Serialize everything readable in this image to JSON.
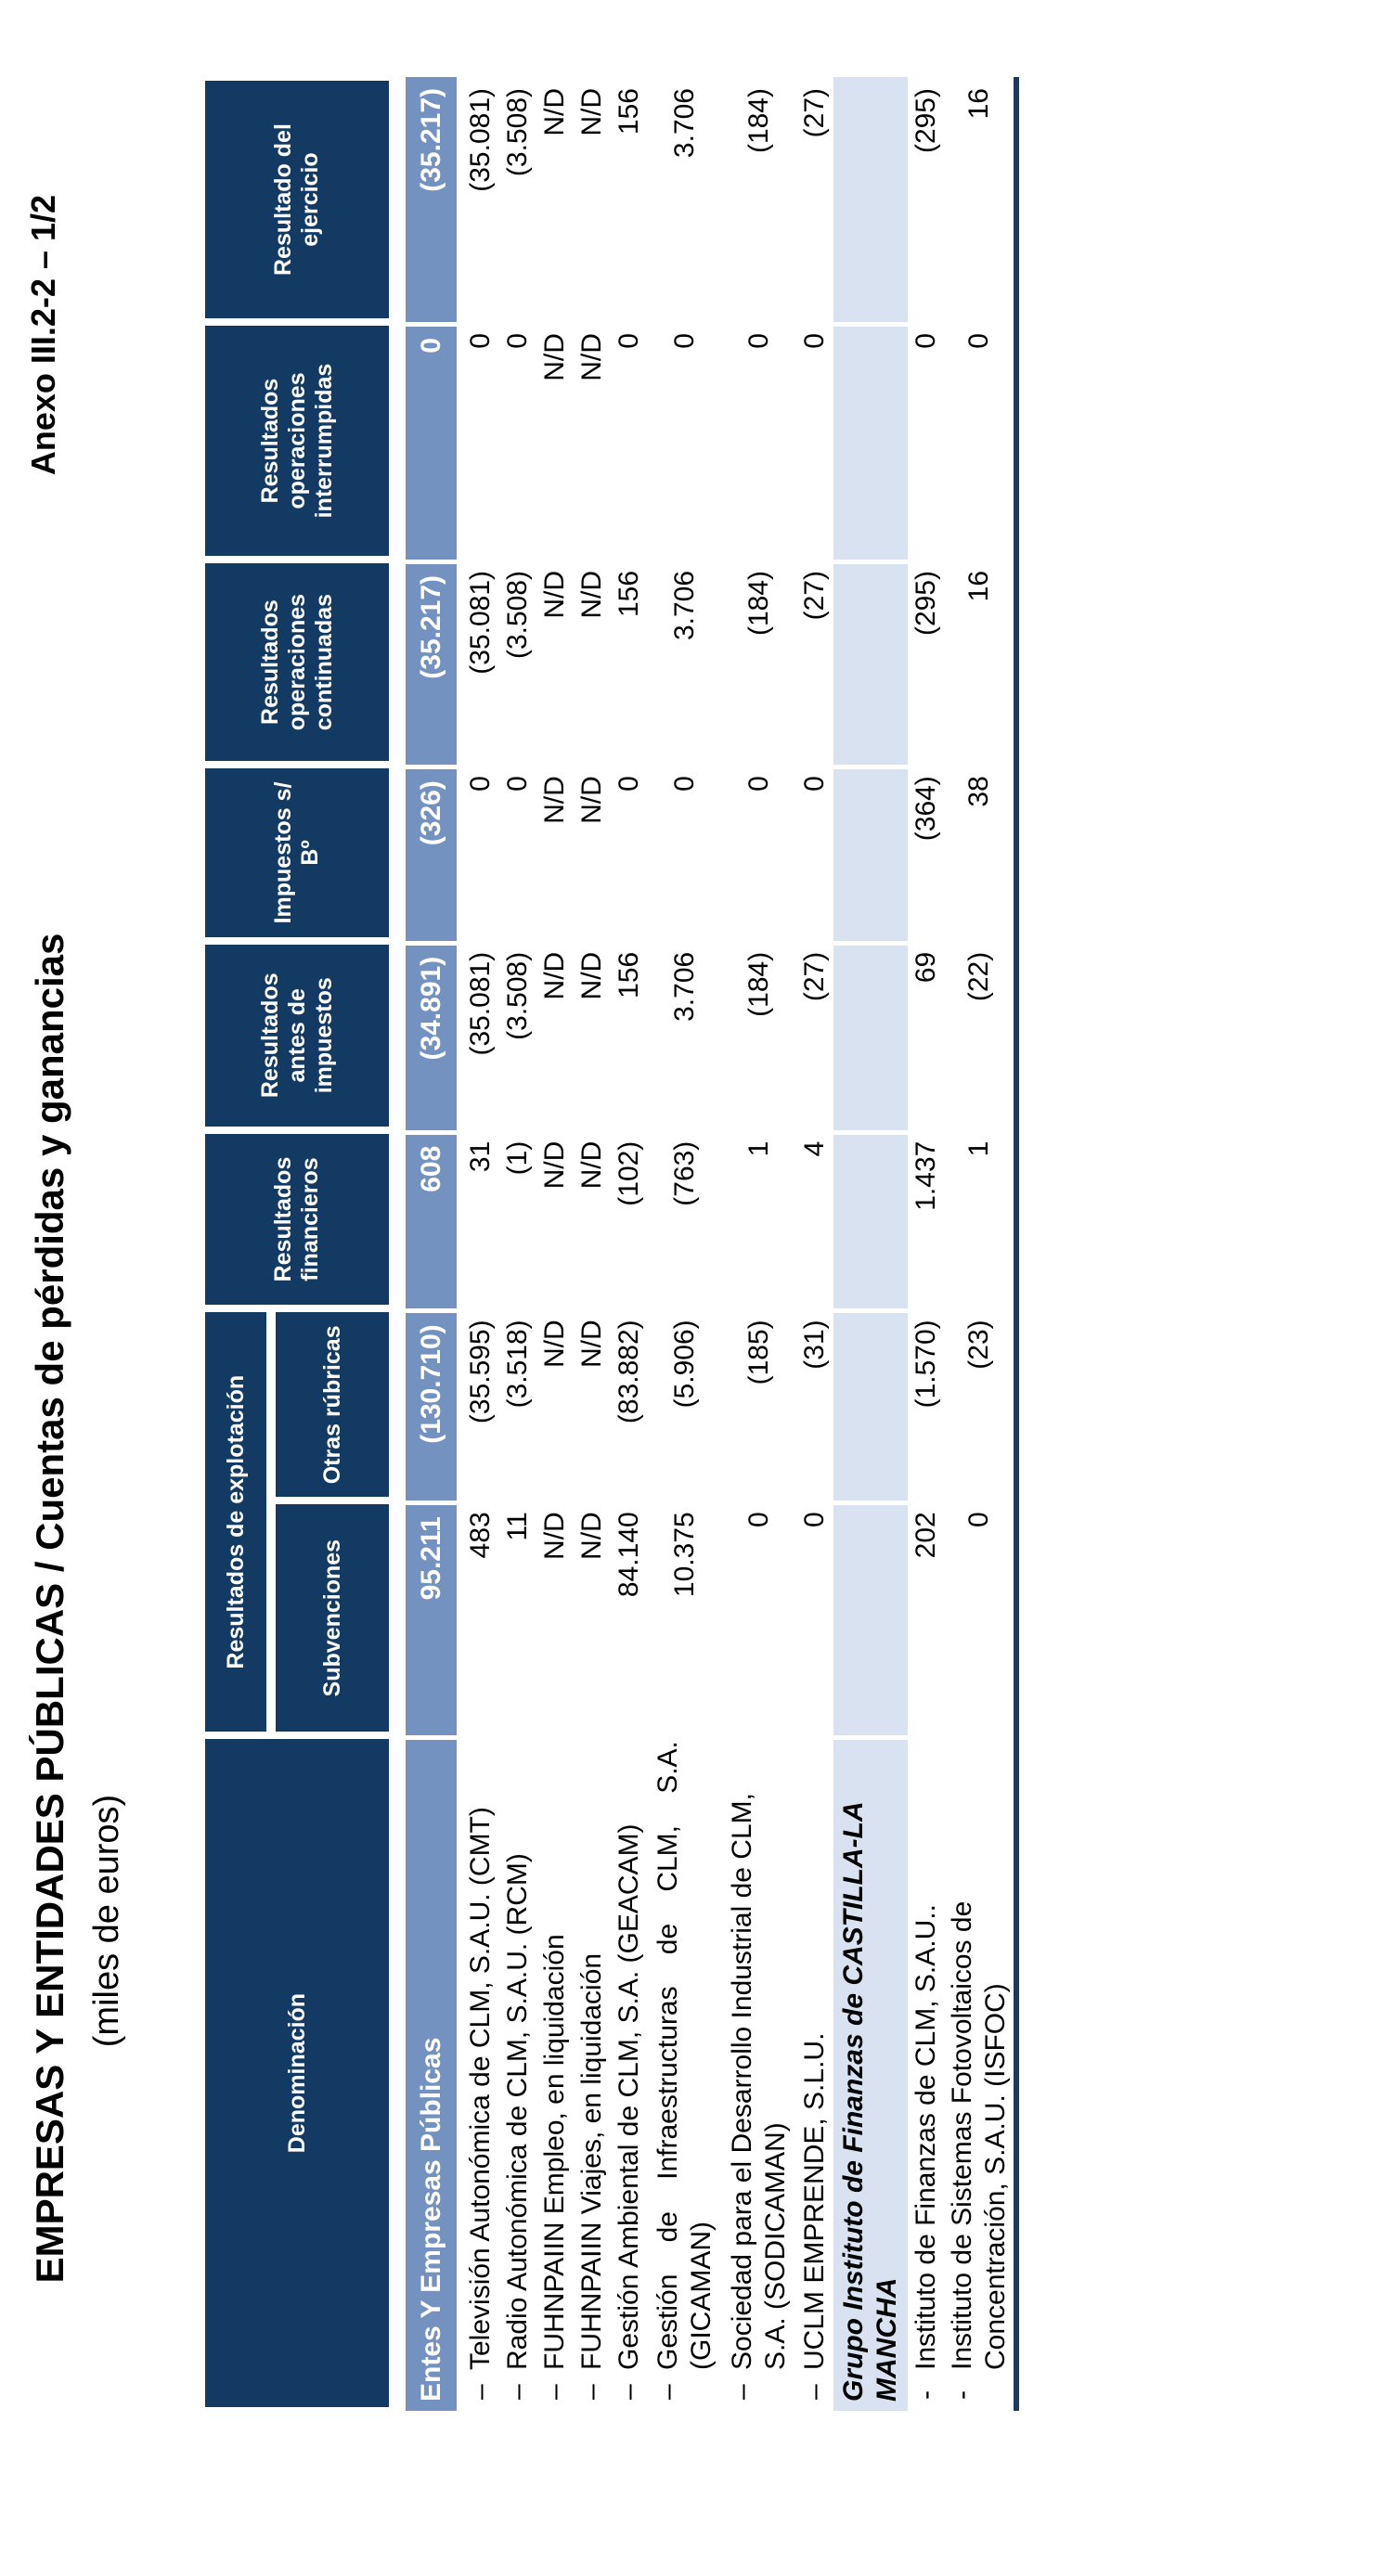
{
  "page": {
    "annex_label": "Anexo III.2-2 – 1/2",
    "title": "EMPRESAS Y ENTIDADES PÚBLICAS  /  Cuentas de pérdidas y ganancias",
    "subtitle": "(miles de euros)"
  },
  "colors": {
    "header_navy": "#123a63",
    "total_row_blue": "#7392bf",
    "subheader_row_blue": "#d9e2f1",
    "bottom_rule_navy": "#1c3a5e"
  },
  "table": {
    "columns": {
      "denominacion": "Denominación",
      "explotacion_group": "Resultados de explotación",
      "subvenciones": "Subvenciones",
      "otras_rubricas": "Otras rúbricas",
      "financieros": "Resultados financieros",
      "antes_impuestos": "Resultados antes de impuestos",
      "impuestos": "Impuestos s/ Bº",
      "continuadas": "Resultados operaciones continuadas",
      "interrumpidas": "Resultados operaciones interrumpidas",
      "ejercicio": "Resultado del ejercicio"
    },
    "value_column_order": [
      "subvenciones",
      "otras_rubricas",
      "financieros",
      "antes_impuestos",
      "impuestos",
      "continuadas",
      "interrumpidas",
      "ejercicio"
    ],
    "rows": [
      {
        "type": "total",
        "dash": "",
        "name_lines": [
          "Entes Y Empresas Públicas"
        ],
        "values": [
          "95.211",
          "(130.710)",
          "608",
          "(34.891)",
          "(326)",
          "(35.217)",
          "0",
          "(35.217)"
        ]
      },
      {
        "type": "item",
        "dash": "–",
        "name_lines": [
          "Televisión Autonómica de CLM, S.A.U. (CMT)"
        ],
        "values": [
          "483",
          "(35.595)",
          "31",
          "(35.081)",
          "0",
          "(35.081)",
          "0",
          "(35.081)"
        ]
      },
      {
        "type": "item",
        "dash": "–",
        "name_lines": [
          "Radio Autonómica de CLM, S.A.U. (RCM)"
        ],
        "values": [
          "11",
          "(3.518)",
          "(1)",
          "(3.508)",
          "0",
          "(3.508)",
          "0",
          "(3.508)"
        ]
      },
      {
        "type": "item",
        "dash": "–",
        "name_lines": [
          "FUHNPAIIN Empleo, en liquidación"
        ],
        "values": [
          "N/D",
          "N/D",
          "N/D",
          "N/D",
          "N/D",
          "N/D",
          "N/D",
          "N/D"
        ]
      },
      {
        "type": "item",
        "dash": "–",
        "name_lines": [
          "FUHNPAIIN Viajes, en liquidación"
        ],
        "values": [
          "N/D",
          "N/D",
          "N/D",
          "N/D",
          "N/D",
          "N/D",
          "N/D",
          "N/D"
        ]
      },
      {
        "type": "item",
        "dash": "–",
        "name_lines": [
          "Gestión Ambiental de CLM, S.A. (GEACAM)"
        ],
        "values": [
          "84.140",
          "(83.882)",
          "(102)",
          "156",
          "0",
          "156",
          "0",
          "156"
        ]
      },
      {
        "type": "item",
        "dash": "–",
        "justify_first_line": true,
        "name_lines": [
          "Gestión de Infraestructuras de CLM, S.A.",
          "(GICAMAN)"
        ],
        "values": [
          "10.375",
          "(5.906)",
          "(763)",
          "3.706",
          "0",
          "3.706",
          "0",
          "3.706"
        ]
      },
      {
        "type": "item",
        "dash": "–",
        "name_lines": [
          "Sociedad para el Desarrollo Industrial de CLM,",
          "S.A. (SODICAMAN)"
        ],
        "values": [
          "0",
          "(185)",
          "1",
          "(184)",
          "0",
          "(184)",
          "0",
          "(184)"
        ]
      },
      {
        "type": "item",
        "dash": "–",
        "name_lines": [
          "UCLM EMPRENDE, S.L.U."
        ],
        "values": [
          "0",
          "(31)",
          "4",
          "(27)",
          "0",
          "(27)",
          "0",
          "(27)"
        ]
      },
      {
        "type": "subheader",
        "dash": "",
        "name_lines": [
          "Grupo Instituto de Finanzas de CASTILLA-LA",
          "MANCHA"
        ],
        "values": [
          "",
          "",
          "",
          "",
          "",
          "",
          "",
          ""
        ]
      },
      {
        "type": "item",
        "dash": "-",
        "name_lines": [
          "Instituto de Finanzas de CLM, S.A.U.."
        ],
        "values": [
          "202",
          "(1.570)",
          "1.437",
          "69",
          "(364)",
          "(295)",
          "0",
          "(295)"
        ]
      },
      {
        "type": "item",
        "dash": "-",
        "name_lines": [
          "Instituto de Sistemas Fotovoltaicos de",
          "Concentración, S.A.U. (ISFOC)"
        ],
        "values": [
          "0",
          "(23)",
          "1",
          "(22)",
          "38",
          "16",
          "0",
          "16"
        ]
      }
    ]
  }
}
